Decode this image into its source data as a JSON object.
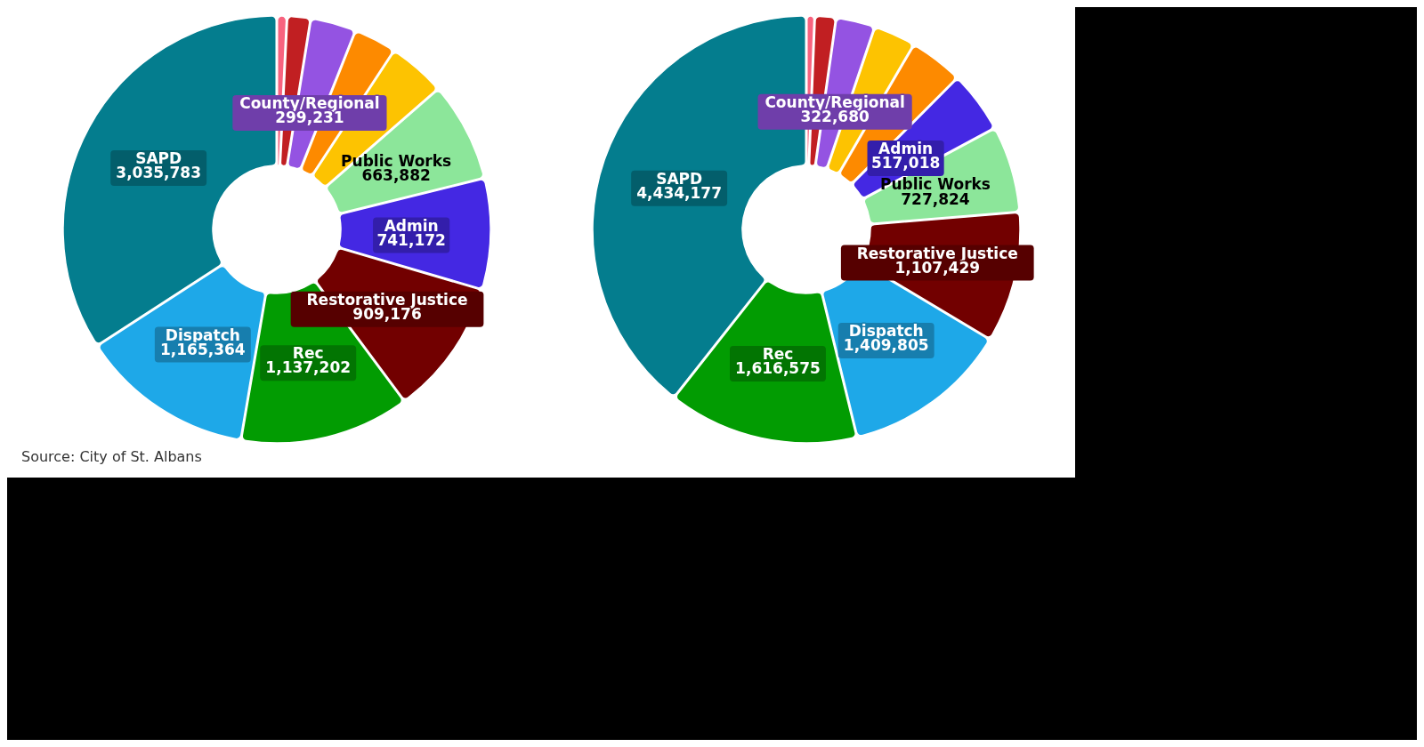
{
  "chart_data": [
    {
      "type": "donut",
      "categories": [
        null,
        null,
        "County/Regional",
        null,
        null,
        "Public Works",
        "Admin",
        "Restorative Justice",
        "Rec",
        "Dispatch",
        "SAPD"
      ],
      "values": [
        60000,
        150000,
        299231,
        280000,
        380000,
        663882,
        741172,
        909176,
        1137202,
        1165364,
        3035783
      ],
      "value_labels": [
        null,
        null,
        "299,231",
        null,
        null,
        "663,882",
        "741,172",
        "909,176",
        "1,137,202",
        "1,165,364",
        "3,035,783"
      ],
      "colors": [
        "#f8637f",
        "#c11f22",
        "#9453e2",
        "#fd8a00",
        "#fdc301",
        "#8ce69a",
        "#4428e3",
        "#720000",
        "#029c02",
        "#1ea8e8",
        "#047d8e"
      ],
      "annotations": [
        "Source: City of St. Albans"
      ]
    },
    {
      "type": "donut",
      "categories": [
        null,
        null,
        "County/Regional",
        null,
        null,
        "Admin",
        "Public Works",
        "Restorative Justice",
        "Dispatch",
        "Rec",
        "SAPD"
      ],
      "values": [
        60000,
        170000,
        322680,
        350000,
        450000,
        517018,
        727824,
        1107429,
        1409805,
        1616575,
        4434177
      ],
      "value_labels": [
        null,
        null,
        "322,680",
        null,
        null,
        "517,018",
        "727,824",
        "1,107,429",
        "1,409,805",
        "1,616,575",
        "4,434,177"
      ],
      "colors": [
        "#f8637f",
        "#c11f22",
        "#9453e2",
        "#fdc301",
        "#fd8a00",
        "#4428e3",
        "#8ce69a",
        "#720000",
        "#1ea8e8",
        "#029c02",
        "#047d8e"
      ]
    }
  ]
}
